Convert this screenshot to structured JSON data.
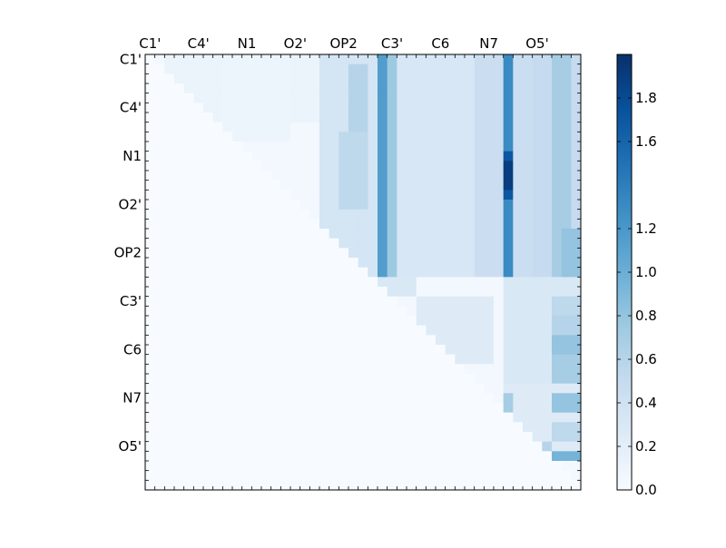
{
  "chart_data": {
    "type": "heatmap",
    "title": "",
    "xlabel": "",
    "ylabel": "",
    "x_tick_labels": [
      "C1'",
      "C4'",
      "N1",
      "O2'",
      "OP2",
      "C3'",
      "C6",
      "N7",
      "O5'"
    ],
    "y_tick_labels": [
      "C1'",
      "C4'",
      "N1",
      "O2'",
      "OP2",
      "C3'",
      "C6",
      "N7",
      "O5'"
    ],
    "grid": false,
    "x_tick_position": "top",
    "colorbar": {
      "position": "right",
      "colormap": "Blues",
      "range": [
        0.0,
        2.0
      ],
      "tick_labels": [
        "0.0",
        "0.2",
        "0.4",
        "0.6",
        "0.8",
        "1.0",
        "1.2",
        "1.6",
        "1.8"
      ],
      "color_stops": [
        "#f7fbff",
        "#deebf7",
        "#c6dbef",
        "#9ecae1",
        "#6baed6",
        "#4292c6",
        "#2171b5",
        "#08519c",
        "#08306b"
      ]
    },
    "size": 45,
    "lower_triangle_value": 0.0,
    "baseline_upper_value": 0.05,
    "patches": [
      {
        "rows": [
          0,
          6
        ],
        "cols": [
          2,
          17
        ],
        "value": 0.12
      },
      {
        "rows": [
          0,
          8
        ],
        "cols": [
          8,
          14
        ],
        "value": 0.1
      },
      {
        "rows": [
          0,
          21
        ],
        "cols": [
          18,
          22
        ],
        "value": 0.35
      },
      {
        "rows": [
          1,
          7
        ],
        "cols": [
          21,
          22
        ],
        "value": 0.6
      },
      {
        "rows": [
          8,
          15
        ],
        "cols": [
          20,
          22
        ],
        "value": 0.55
      },
      {
        "rows": [
          0,
          22
        ],
        "cols": [
          23,
          23
        ],
        "value": 0.35
      },
      {
        "rows": [
          0,
          22
        ],
        "cols": [
          24,
          24
        ],
        "value": 1.15
      },
      {
        "rows": [
          0,
          22
        ],
        "cols": [
          25,
          25
        ],
        "value": 0.75
      },
      {
        "rows": [
          0,
          22
        ],
        "cols": [
          26,
          36
        ],
        "value": 0.32
      },
      {
        "rows": [
          0,
          22
        ],
        "cols": [
          34,
          36
        ],
        "value": 0.45
      },
      {
        "rows": [
          0,
          22
        ],
        "cols": [
          37,
          37
        ],
        "value": 1.3
      },
      {
        "rows": [
          0,
          22
        ],
        "cols": [
          38,
          39
        ],
        "value": 0.45
      },
      {
        "rows": [
          0,
          22
        ],
        "cols": [
          40,
          44
        ],
        "value": 0.5
      },
      {
        "rows": [
          0,
          22
        ],
        "cols": [
          42,
          43
        ],
        "value": 0.7
      },
      {
        "rows": [
          10,
          14
        ],
        "cols": [
          37,
          37
        ],
        "value": 1.7
      },
      {
        "rows": [
          11,
          13
        ],
        "cols": [
          37,
          37
        ],
        "value": 1.9
      },
      {
        "rows": [
          18,
          22
        ],
        "cols": [
          43,
          44
        ],
        "value": 0.8
      },
      {
        "rows": [
          23,
          24
        ],
        "cols": [
          24,
          27
        ],
        "value": 0.3
      },
      {
        "rows": [
          25,
          31
        ],
        "cols": [
          28,
          35
        ],
        "value": 0.25
      },
      {
        "rows": [
          23,
          33
        ],
        "cols": [
          37,
          44
        ],
        "value": 0.3
      },
      {
        "rows": [
          25,
          26
        ],
        "cols": [
          42,
          44
        ],
        "value": 0.55
      },
      {
        "rows": [
          27,
          28
        ],
        "cols": [
          42,
          44
        ],
        "value": 0.6
      },
      {
        "rows": [
          29,
          30
        ],
        "cols": [
          42,
          44
        ],
        "value": 0.8
      },
      {
        "rows": [
          31,
          33
        ],
        "cols": [
          42,
          44
        ],
        "value": 0.7
      },
      {
        "rows": [
          34,
          40
        ],
        "cols": [
          37,
          44
        ],
        "value": 0.25
      },
      {
        "rows": [
          35,
          36
        ],
        "cols": [
          37,
          37
        ],
        "value": 0.7
      },
      {
        "rows": [
          35,
          36
        ],
        "cols": [
          42,
          44
        ],
        "value": 0.8
      },
      {
        "rows": [
          38,
          39
        ],
        "cols": [
          42,
          44
        ],
        "value": 0.55
      },
      {
        "rows": [
          40,
          41
        ],
        "cols": [
          41,
          41
        ],
        "value": 0.6
      },
      {
        "rows": [
          41,
          41
        ],
        "cols": [
          42,
          44
        ],
        "value": 0.95
      }
    ]
  }
}
